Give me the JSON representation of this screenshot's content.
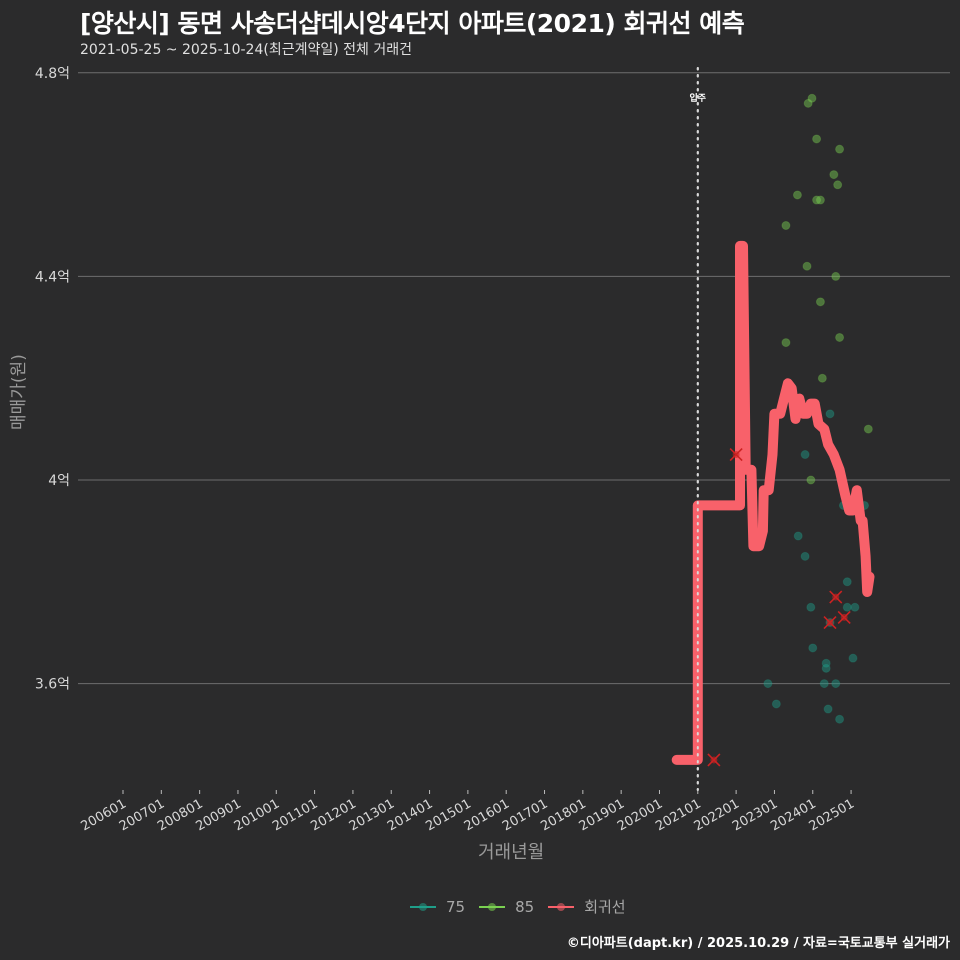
{
  "header": {
    "title": "[양산시] 동면 사송더샵데시앙4단지 아파트(2021) 회귀선 예측",
    "subtitle": "2021-05-25 ~ 2025-10-24(최근계약일) 전체 거래건"
  },
  "footer": {
    "credit": "©디아파트(dapt.kr) / 2025.10.29 / 자료=국토교통부 실거래가"
  },
  "annotation": {
    "label": "입주",
    "x": "202101"
  },
  "legend": [
    {
      "label": "75",
      "color": "#1f9e89"
    },
    {
      "label": "85",
      "color": "#7ad151"
    },
    {
      "label": "회귀선",
      "color": "#f8616a"
    }
  ],
  "colors": {
    "background": "#2b2b2c",
    "grid": "#6e6e6e",
    "series_75": "#1f9e89",
    "series_85": "#7ad151",
    "regression": "#f8616a",
    "outlier_x": "#cc2222"
  },
  "chart_data": {
    "type": "scatter",
    "title": "[양산시] 동면 사송더샵데시앙4단지 아파트(2021) 회귀선 예측",
    "subtitle": "2021-05-25 ~ 2025-10-24(최근계약일) 전체 거래건",
    "xlabel": "거래년월",
    "ylabel": "매매가(원)",
    "x_ticks": [
      "200601",
      "200701",
      "200801",
      "200901",
      "201001",
      "201101",
      "201201",
      "201301",
      "201401",
      "201501",
      "201601",
      "201701",
      "201801",
      "201901",
      "202001",
      "202101",
      "202201",
      "202301",
      "202401",
      "202501"
    ],
    "y_ticks": [
      {
        "value": 3.6,
        "label": "3.6억"
      },
      {
        "value": 4.0,
        "label": "4억"
      },
      {
        "value": 4.4,
        "label": "4.4억"
      },
      {
        "value": 4.8,
        "label": "4.8억"
      }
    ],
    "ylim": [
      3.42,
      4.82
    ],
    "xlim": [
      2005.0,
      2026.0
    ],
    "grid": "horizontal",
    "legend_position": "bottom",
    "vline": {
      "x": 2021.0,
      "label": "입주"
    },
    "series": [
      {
        "name": "75",
        "type": "scatter",
        "points": [
          [
            2022.83,
            3.6
          ],
          [
            2023.05,
            3.56
          ],
          [
            2023.62,
            3.89
          ],
          [
            2023.8,
            3.85
          ],
          [
            2023.8,
            4.05
          ],
          [
            2023.95,
            3.75
          ],
          [
            2024.0,
            3.67
          ],
          [
            2024.3,
            3.6
          ],
          [
            2024.35,
            3.64
          ],
          [
            2024.35,
            3.63
          ],
          [
            2024.4,
            3.55
          ],
          [
            2024.45,
            3.72
          ],
          [
            2024.6,
            3.6
          ],
          [
            2024.7,
            3.53
          ],
          [
            2024.8,
            3.95
          ],
          [
            2024.9,
            3.8
          ],
          [
            2025.05,
            3.65
          ],
          [
            2025.1,
            3.75
          ],
          [
            2025.35,
            3.95
          ],
          [
            2024.45,
            4.13
          ],
          [
            2024.9,
            3.75
          ]
        ]
      },
      {
        "name": "85",
        "type": "scatter",
        "points": [
          [
            2023.6,
            4.56
          ],
          [
            2023.88,
            4.74
          ],
          [
            2023.98,
            4.75
          ],
          [
            2023.3,
            4.27
          ],
          [
            2023.3,
            4.5
          ],
          [
            2023.85,
            4.42
          ],
          [
            2024.1,
            4.55
          ],
          [
            2024.2,
            4.55
          ],
          [
            2024.1,
            4.67
          ],
          [
            2024.2,
            4.35
          ],
          [
            2024.25,
            4.2
          ],
          [
            2024.55,
            4.6
          ],
          [
            2024.7,
            4.65
          ],
          [
            2024.6,
            4.4
          ],
          [
            2024.7,
            4.28
          ],
          [
            2024.65,
            4.58
          ],
          [
            2023.95,
            4.0
          ],
          [
            2025.45,
            4.1
          ]
        ]
      },
      {
        "name": "회귀선",
        "type": "line",
        "points": [
          [
            2020.45,
            3.45
          ],
          [
            2021.0,
            3.45
          ],
          [
            2021.0,
            3.95
          ],
          [
            2022.05,
            3.95
          ],
          [
            2022.1,
            3.95
          ],
          [
            2022.1,
            4.46
          ],
          [
            2022.18,
            4.46
          ],
          [
            2022.25,
            4.02
          ],
          [
            2022.4,
            4.02
          ],
          [
            2022.45,
            3.87
          ],
          [
            2022.6,
            3.87
          ],
          [
            2022.7,
            3.9
          ],
          [
            2022.72,
            3.98
          ],
          [
            2022.85,
            3.98
          ],
          [
            2022.95,
            4.05
          ],
          [
            2023.0,
            4.13
          ],
          [
            2023.15,
            4.13
          ],
          [
            2023.25,
            4.16
          ],
          [
            2023.35,
            4.19
          ],
          [
            2023.45,
            4.18
          ],
          [
            2023.55,
            4.12
          ],
          [
            2023.65,
            4.16
          ],
          [
            2023.75,
            4.13
          ],
          [
            2023.85,
            4.13
          ],
          [
            2023.95,
            4.15
          ],
          [
            2024.05,
            4.15
          ],
          [
            2024.15,
            4.11
          ],
          [
            2024.3,
            4.1
          ],
          [
            2024.4,
            4.07
          ],
          [
            2024.55,
            4.05
          ],
          [
            2024.7,
            4.02
          ],
          [
            2024.85,
            3.97
          ],
          [
            2024.95,
            3.94
          ],
          [
            2025.05,
            3.94
          ],
          [
            2025.15,
            3.98
          ],
          [
            2025.25,
            3.92
          ],
          [
            2025.3,
            3.92
          ],
          [
            2025.38,
            3.85
          ],
          [
            2025.42,
            3.78
          ],
          [
            2025.48,
            3.81
          ]
        ]
      },
      {
        "name": "outliers",
        "type": "x-marker",
        "points": [
          [
            2021.42,
            3.45
          ],
          [
            2022.0,
            4.05
          ],
          [
            2024.45,
            3.72
          ],
          [
            2024.6,
            3.77
          ],
          [
            2024.82,
            3.73
          ]
        ]
      }
    ]
  }
}
